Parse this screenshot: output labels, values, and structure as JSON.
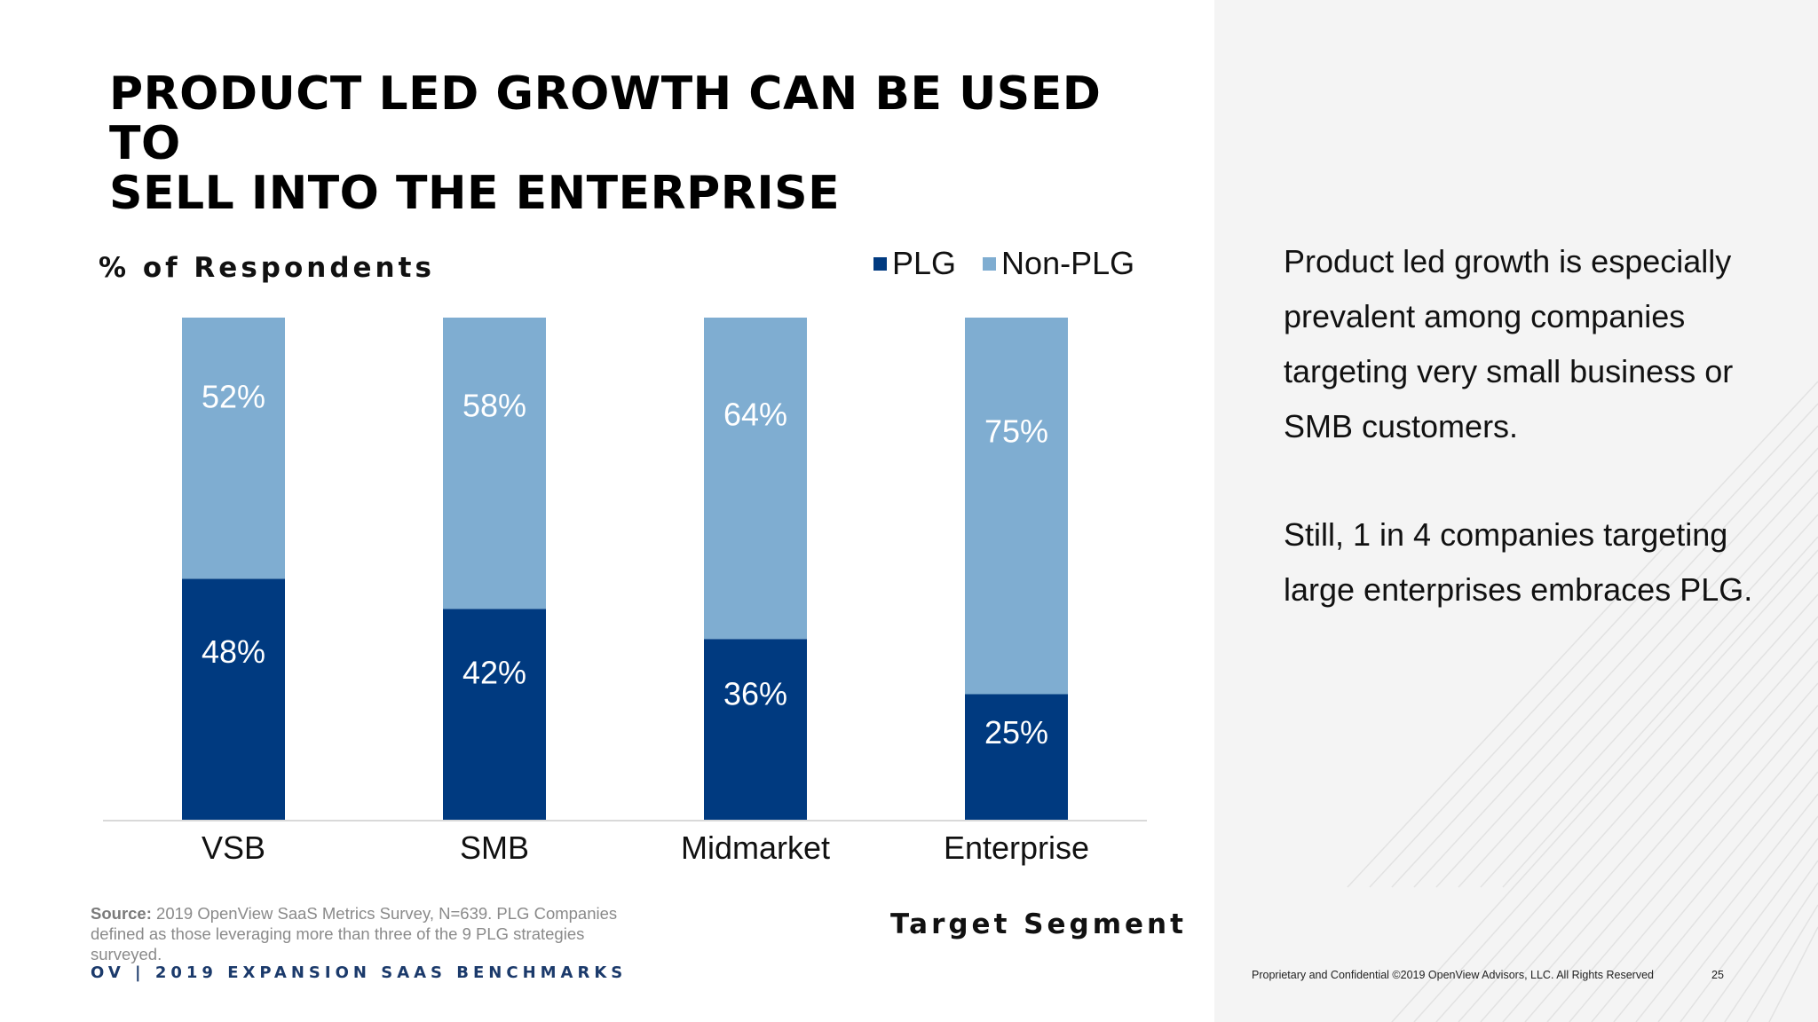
{
  "slide": {
    "title_lines": [
      "PRODUCT LED GROWTH CAN BE USED TO",
      "SELL INTO THE ENTERPRISE"
    ],
    "page_number": "25"
  },
  "chart_data": {
    "type": "bar",
    "stacked": true,
    "categories": [
      "VSB",
      "SMB",
      "Midmarket",
      "Enterprise"
    ],
    "series": [
      {
        "name": "PLG",
        "values": [
          48,
          42,
          36,
          25
        ],
        "labels": [
          "48%",
          "42%",
          "36%",
          "25%"
        ],
        "color": "#003a80"
      },
      {
        "name": "Non-PLG",
        "values": [
          52,
          58,
          64,
          75
        ],
        "labels": [
          "52%",
          "58%",
          "64%",
          "75%"
        ],
        "color": "#7fadd1"
      }
    ],
    "ylabel": "% of Respondents",
    "xlabel": "Target Segment",
    "ylim": [
      0,
      100
    ],
    "legend_position": "top-right",
    "grid": false
  },
  "notes": {
    "paragraph1": "Product led growth is especially prevalent among companies targeting very small business or SMB customers.",
    "paragraph2": "Still, 1 in 4 companies targeting large enterprises embraces PLG."
  },
  "source": {
    "label": "Source:",
    "text": "2019 OpenView SaaS Metrics Survey, N=639. PLG Companies defined as those leveraging more than three of the 9 PLG strategies surveyed."
  },
  "footer": {
    "brand": "OV | 2019 EXPANSION SAAS BENCHMARKS",
    "legal": "Proprietary and Confidential ©2019 OpenView Advisors, LLC. All Rights Reserved"
  },
  "colors": {
    "plg": "#003a80",
    "non_plg": "#7fadd1",
    "axis": "#d9d9d9",
    "brand_navy": "#1b3a6b"
  }
}
